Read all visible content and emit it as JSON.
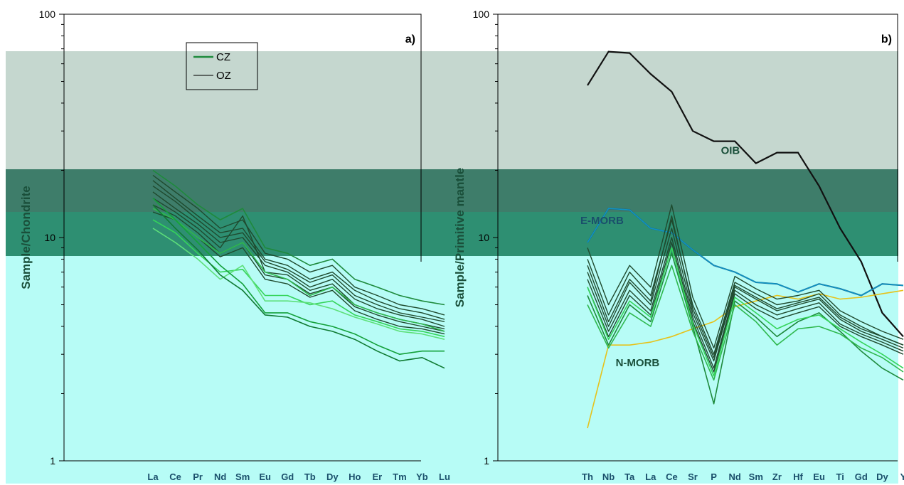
{
  "chart_data": [
    {
      "type": "line",
      "panel_label": "a)",
      "ylabel": "Sample/Chondrite",
      "y_scale": "log",
      "ylim": [
        1,
        100
      ],
      "y_ticks": [
        "1",
        "10",
        "100"
      ],
      "categories": [
        "La",
        "Ce",
        "Pr",
        "Nd",
        "Sm",
        "Eu",
        "Gd",
        "Tb",
        "Dy",
        "Ho",
        "Er",
        "Tm",
        "Yb",
        "Lu"
      ],
      "legend": [
        "CZ",
        "OZ"
      ],
      "legend_position": "top-center",
      "series": [
        {
          "group": "OZ",
          "values": [
            19,
            16,
            13.5,
            11,
            12,
            8.5,
            8,
            7,
            7.5,
            6,
            5.5,
            5,
            4.8,
            4.5
          ]
        },
        {
          "group": "OZ",
          "values": [
            18,
            15,
            12.5,
            10.5,
            11,
            8,
            7.5,
            6.5,
            7,
            5.8,
            5.2,
            4.8,
            4.6,
            4.3
          ]
        },
        {
          "group": "OZ",
          "values": [
            17,
            14.5,
            12,
            10,
            10.5,
            7.8,
            7.2,
            6.3,
            6.8,
            5.5,
            5,
            4.6,
            4.4,
            4.2
          ]
        },
        {
          "group": "OZ",
          "values": [
            16,
            13.5,
            11.5,
            9.5,
            10,
            7.5,
            7,
            6,
            6.5,
            5.3,
            4.8,
            4.5,
            4.3,
            4
          ]
        },
        {
          "group": "OZ",
          "values": [
            15,
            13,
            11,
            9,
            12.5,
            7,
            6.8,
            5.8,
            6.2,
            5,
            4.6,
            4.3,
            4.1,
            3.9
          ]
        },
        {
          "group": "OZ",
          "values": [
            14,
            12.5,
            10.5,
            8.5,
            9.5,
            6.8,
            6.5,
            5.6,
            6,
            4.9,
            4.5,
            4.2,
            4,
            3.8
          ]
        },
        {
          "group": "OZ",
          "values": [
            13,
            12,
            10,
            8.2,
            9,
            6.5,
            6.2,
            5.4,
            5.8,
            4.7,
            4.3,
            4,
            3.9,
            3.7
          ]
        },
        {
          "group": "CZ",
          "values": [
            20,
            17,
            14,
            12,
            13.5,
            9,
            8.5,
            7.5,
            8,
            6.5,
            6,
            5.5,
            5.2,
            5
          ]
        },
        {
          "group": "CZ",
          "values": [
            13.5,
            12,
            10,
            8.5,
            9.5,
            7,
            6.5,
            5.5,
            6,
            5,
            4.6,
            4.3,
            4.1,
            3.8
          ]
        },
        {
          "group": "CZ",
          "values": [
            12,
            10.5,
            8.5,
            7,
            7.2,
            5.5,
            5.5,
            5,
            5.2,
            4.5,
            4.2,
            3.9,
            3.8,
            3.6
          ]
        },
        {
          "group": "CZ",
          "values": [
            11,
            9.5,
            8,
            6.5,
            7.5,
            5.2,
            5.2,
            5.1,
            4.8,
            4.4,
            4.1,
            3.8,
            3.7,
            3.5
          ]
        },
        {
          "group": "CZ",
          "values": [
            15,
            12,
            9.5,
            7.5,
            6.2,
            4.6,
            4.6,
            4.2,
            4,
            3.7,
            3.3,
            3,
            3.1,
            3.1
          ]
        },
        {
          "group": "CZ",
          "values": [
            14,
            11,
            8.8,
            6.8,
            5.8,
            4.5,
            4.4,
            4,
            3.8,
            3.5,
            3.1,
            2.8,
            2.9,
            2.6
          ]
        }
      ]
    },
    {
      "type": "line",
      "panel_label": "b)",
      "ylabel": "Sample/Primitive mantle",
      "y_scale": "log",
      "ylim": [
        1,
        100
      ],
      "y_ticks": [
        "1",
        "10",
        "100"
      ],
      "categories": [
        "Th",
        "Nb",
        "Ta",
        "La",
        "Ce",
        "Sr",
        "P",
        "Nd",
        "Sm",
        "Zr",
        "Hf",
        "Eu",
        "Ti",
        "Gd",
        "Dy",
        "Y"
      ],
      "references": [
        {
          "name": "OIB",
          "values": [
            48,
            68,
            67,
            54,
            45,
            30,
            27,
            27,
            21.5,
            24,
            24,
            17,
            11,
            7.8,
            4.6,
            3.6
          ]
        },
        {
          "name": "E-MORB",
          "values": [
            9.5,
            13.5,
            13.3,
            11,
            10.5,
            8.8,
            7.5,
            7,
            6.3,
            6.2,
            5.7,
            6.2,
            5.9,
            5.5,
            6.2,
            6.1
          ]
        },
        {
          "name": "N-MORB",
          "values": [
            1.4,
            3.3,
            3.3,
            3.4,
            3.6,
            3.9,
            4.2,
            4.9,
            5.2,
            5.5,
            5.3,
            5.6,
            5.3,
            5.4,
            5.6,
            5.8
          ]
        }
      ],
      "series": [
        {
          "group": "OZ",
          "values": [
            8,
            4.5,
            7,
            5.5,
            12,
            5,
            3,
            6.3,
            5.6,
            5,
            5.2,
            5.6,
            4.5,
            4,
            3.6,
            3.3
          ]
        },
        {
          "group": "OZ",
          "values": [
            7,
            4,
            6.3,
            5,
            11,
            4.6,
            2.8,
            6,
            5.3,
            4.7,
            5,
            5.3,
            4.3,
            3.8,
            3.5,
            3.2
          ]
        },
        {
          "group": "OZ",
          "values": [
            6.5,
            3.8,
            5.8,
            4.7,
            10,
            4.4,
            2.6,
            5.8,
            5,
            4.5,
            4.8,
            5.1,
            4.1,
            3.7,
            3.4,
            3.1
          ]
        },
        {
          "group": "OZ",
          "values": [
            9,
            5,
            7.5,
            6,
            14,
            5.4,
            3.2,
            6.7,
            5.9,
            5.3,
            5.5,
            5.8,
            4.7,
            4.2,
            3.8,
            3.5
          ]
        },
        {
          "group": "OZ",
          "values": [
            6,
            3.6,
            5.5,
            4.5,
            9.5,
            4.2,
            2.5,
            5.6,
            4.8,
            4.3,
            4.6,
            4.9,
            4,
            3.6,
            3.3,
            3
          ]
        },
        {
          "group": "OZ",
          "values": [
            7.5,
            4.2,
            6.5,
            5.2,
            12.5,
            4.8,
            2.9,
            6.1,
            5.4,
            4.8,
            5.1,
            5.4,
            4.4,
            3.9,
            3.6,
            3.3
          ]
        },
        {
          "group": "CZ",
          "values": [
            5.5,
            3.3,
            5,
            4.2,
            8.5,
            4,
            1.8,
            5.2,
            4.4,
            3.6,
            4.2,
            4.6,
            3.8,
            3.1,
            2.6,
            2.3
          ]
        },
        {
          "group": "CZ",
          "values": [
            5,
            3.2,
            4.6,
            4,
            7.5,
            3.8,
            2.3,
            5,
            4.2,
            3.3,
            3.9,
            4,
            3.7,
            3.2,
            2.9,
            2.5
          ]
        },
        {
          "group": "CZ",
          "values": [
            6,
            3.5,
            5.2,
            4.4,
            9,
            4.1,
            2.4,
            5.4,
            4.6,
            3.9,
            4.3,
            4.5,
            3.9,
            3.4,
            3,
            2.6
          ]
        }
      ]
    }
  ],
  "colors": {
    "oz": "#1f4a2e",
    "cz_palette": [
      "#1e8a3c",
      "#2fb84e",
      "#35d45a",
      "#5ee07a",
      "#14a03a",
      "#0f7a32"
    ],
    "oib": "#111111",
    "emorb": "#0ea5d6",
    "emorb_line": "#17507a",
    "nmorb": "#e6c21a",
    "axis": "#000000"
  },
  "overlay_bands": [
    {
      "color": "#c5d7cf"
    },
    {
      "color": "#3e7d6a"
    },
    {
      "color": "#2e8f72"
    },
    {
      "color": "#b7fcf6"
    }
  ]
}
